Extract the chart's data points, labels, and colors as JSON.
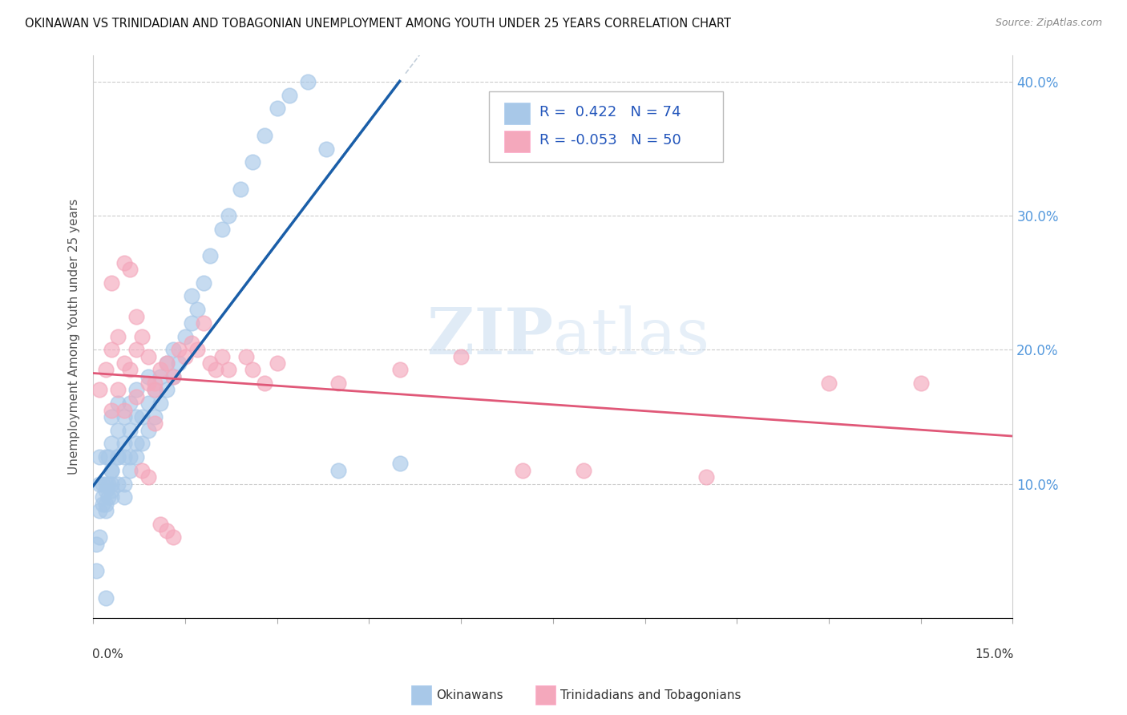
{
  "title": "OKINAWAN VS TRINIDADIAN AND TOBAGONIAN UNEMPLOYMENT AMONG YOUTH UNDER 25 YEARS CORRELATION CHART",
  "source": "Source: ZipAtlas.com",
  "ylabel": "Unemployment Among Youth under 25 years",
  "legend_label1": "Okinawans",
  "legend_label2": "Trinidadians and Tobagonians",
  "R1": 0.422,
  "N1": 74,
  "R2": -0.053,
  "N2": 50,
  "color_blue": "#A8C8E8",
  "color_pink": "#F4A8BC",
  "color_trendline_blue": "#1A5EA8",
  "color_trendline_pink": "#E05878",
  "background": "#FFFFFF",
  "xlim": [
    0.0,
    0.15
  ],
  "ylim": [
    0.0,
    0.42
  ],
  "okinawan_x": [
    0.0005,
    0.0005,
    0.001,
    0.001,
    0.001,
    0.001,
    0.0015,
    0.0015,
    0.0015,
    0.002,
    0.002,
    0.002,
    0.002,
    0.002,
    0.0025,
    0.0025,
    0.0025,
    0.003,
    0.003,
    0.003,
    0.003,
    0.003,
    0.003,
    0.004,
    0.004,
    0.004,
    0.004,
    0.005,
    0.005,
    0.005,
    0.005,
    0.005,
    0.006,
    0.006,
    0.006,
    0.006,
    0.007,
    0.007,
    0.007,
    0.007,
    0.008,
    0.008,
    0.009,
    0.009,
    0.009,
    0.01,
    0.01,
    0.011,
    0.011,
    0.012,
    0.012,
    0.013,
    0.013,
    0.014,
    0.015,
    0.016,
    0.016,
    0.017,
    0.018,
    0.019,
    0.021,
    0.022,
    0.024,
    0.026,
    0.028,
    0.03,
    0.032,
    0.035,
    0.038,
    0.04,
    0.05,
    0.003,
    0.004,
    0.002
  ],
  "okinawan_y": [
    0.035,
    0.055,
    0.06,
    0.08,
    0.1,
    0.12,
    0.085,
    0.09,
    0.1,
    0.08,
    0.085,
    0.095,
    0.1,
    0.12,
    0.09,
    0.1,
    0.12,
    0.09,
    0.095,
    0.1,
    0.11,
    0.13,
    0.15,
    0.1,
    0.12,
    0.14,
    0.16,
    0.09,
    0.1,
    0.12,
    0.13,
    0.15,
    0.11,
    0.12,
    0.14,
    0.16,
    0.12,
    0.13,
    0.15,
    0.17,
    0.13,
    0.15,
    0.14,
    0.16,
    0.18,
    0.15,
    0.17,
    0.16,
    0.18,
    0.17,
    0.19,
    0.18,
    0.2,
    0.19,
    0.21,
    0.22,
    0.24,
    0.23,
    0.25,
    0.27,
    0.29,
    0.3,
    0.32,
    0.34,
    0.36,
    0.38,
    0.39,
    0.4,
    0.35,
    0.11,
    0.115,
    0.11,
    0.12,
    0.015
  ],
  "trinidadian_x": [
    0.001,
    0.002,
    0.003,
    0.003,
    0.004,
    0.004,
    0.005,
    0.005,
    0.006,
    0.006,
    0.007,
    0.007,
    0.008,
    0.009,
    0.009,
    0.01,
    0.01,
    0.011,
    0.012,
    0.013,
    0.014,
    0.015,
    0.016,
    0.017,
    0.018,
    0.019,
    0.02,
    0.021,
    0.022,
    0.025,
    0.026,
    0.028,
    0.03,
    0.04,
    0.05,
    0.06,
    0.07,
    0.08,
    0.1,
    0.12,
    0.003,
    0.005,
    0.007,
    0.008,
    0.009,
    0.01,
    0.011,
    0.012,
    0.013,
    0.135
  ],
  "trinidadian_y": [
    0.17,
    0.185,
    0.2,
    0.25,
    0.21,
    0.17,
    0.265,
    0.19,
    0.185,
    0.26,
    0.2,
    0.225,
    0.21,
    0.175,
    0.195,
    0.175,
    0.145,
    0.185,
    0.19,
    0.18,
    0.2,
    0.195,
    0.205,
    0.2,
    0.22,
    0.19,
    0.185,
    0.195,
    0.185,
    0.195,
    0.185,
    0.175,
    0.19,
    0.175,
    0.185,
    0.195,
    0.11,
    0.11,
    0.105,
    0.175,
    0.155,
    0.155,
    0.165,
    0.11,
    0.105,
    0.17,
    0.07,
    0.065,
    0.06,
    0.175
  ]
}
